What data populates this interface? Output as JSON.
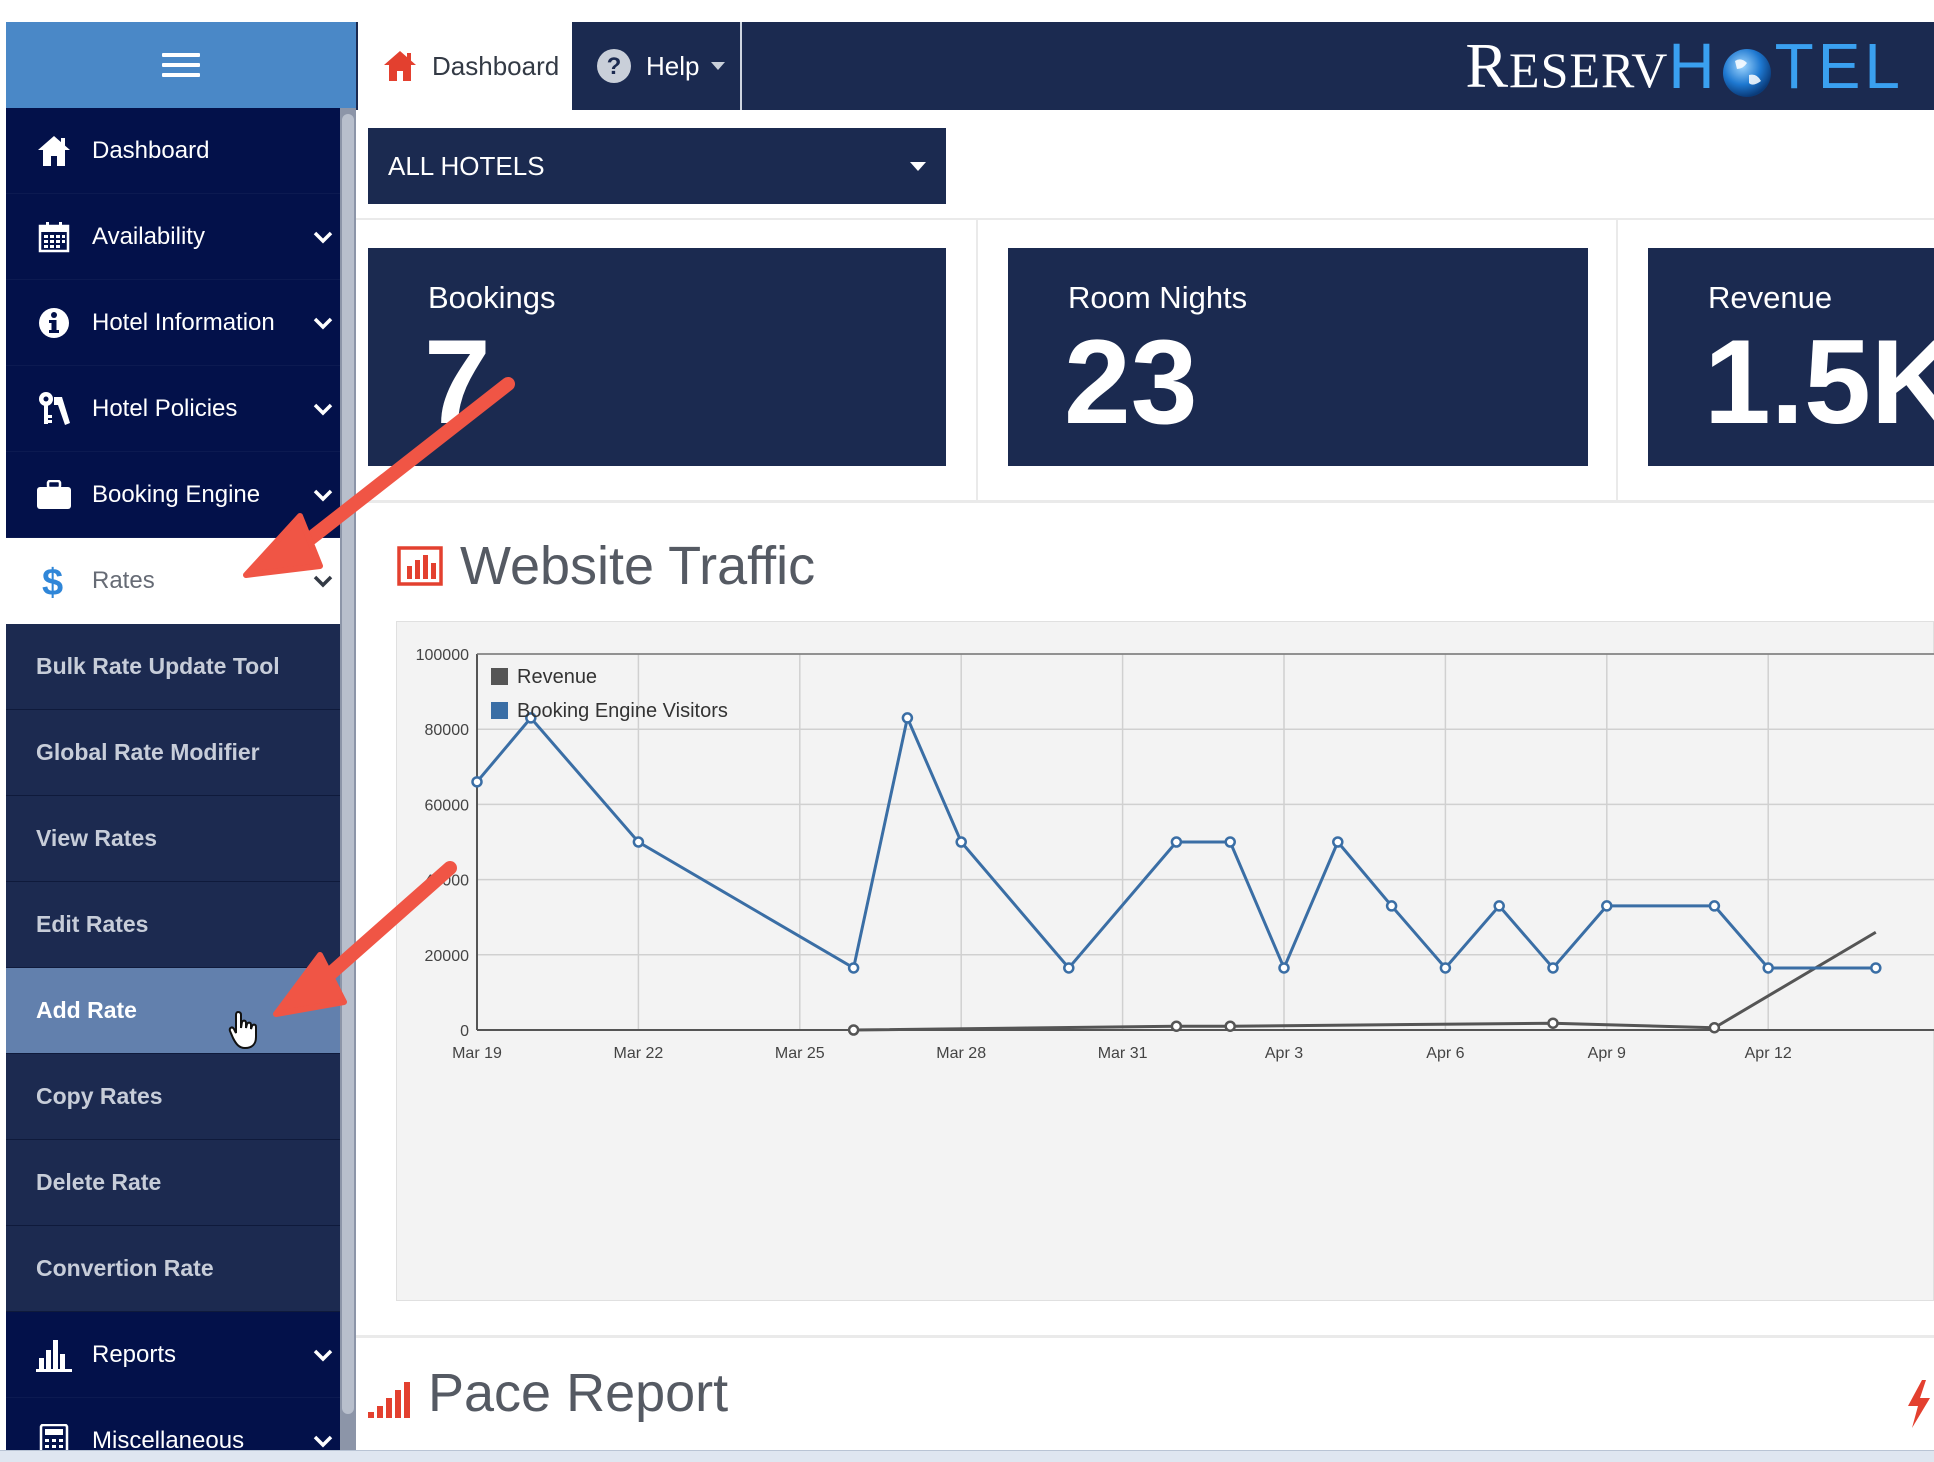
{
  "header": {
    "tabs": [
      {
        "label": "Dashboard",
        "icon": "home-icon"
      },
      {
        "label": "Help",
        "icon": "question-circle-icon"
      }
    ],
    "logo": {
      "part1": "R",
      "part2": "ESERV",
      "part3": "H",
      "part4": "TEL"
    }
  },
  "sidebar": {
    "items": [
      {
        "label": "Dashboard",
        "icon": "home-icon"
      },
      {
        "label": "Availability",
        "icon": "calendar-icon"
      },
      {
        "label": "Hotel Information",
        "icon": "info-circle-icon"
      },
      {
        "label": "Hotel Policies",
        "icon": "keys-icon"
      },
      {
        "label": "Booking Engine",
        "icon": "briefcase-icon"
      },
      {
        "label": "Rates",
        "icon": "dollar-icon"
      },
      {
        "label": "Reports",
        "icon": "bar-chart-icon"
      },
      {
        "label": "Miscellaneous",
        "icon": "calculator-icon"
      }
    ],
    "rates_submenu": [
      "Bulk Rate Update Tool",
      "Global Rate Modifier",
      "View Rates",
      "Edit Rates",
      "Add Rate",
      "Copy Rates",
      "Delete Rate",
      "Convertion Rate"
    ]
  },
  "hotel_select": {
    "value": "ALL HOTELS"
  },
  "stats": [
    {
      "label": "Bookings",
      "value": "7"
    },
    {
      "label": "Room Nights",
      "value": "23"
    },
    {
      "label": "Revenue",
      "value": "1.5K"
    }
  ],
  "traffic": {
    "title": "Website Traffic"
  },
  "pace": {
    "title": "Pace Report"
  },
  "colors": {
    "navy": "#1b2a50",
    "sidebar": "#03114a",
    "accent_blue": "#4a88c7",
    "series_blue": "#3a6ea5",
    "series_dark": "#555555",
    "arrow_red": "#f05545"
  },
  "chart_data": {
    "type": "line",
    "x": [
      "Mar 19",
      "Mar 20",
      "Mar 22",
      "Mar 26",
      "Mar 27",
      "Mar 28",
      "Mar 30",
      "Apr 1",
      "Apr 2",
      "Apr 3",
      "Apr 4",
      "Apr 5",
      "Apr 6",
      "Apr 7",
      "Apr 8",
      "Apr 9",
      "Apr 11",
      "Apr 12",
      "Apr 14"
    ],
    "xticks": [
      "Mar 19",
      "Mar 22",
      "Mar 25",
      "Mar 28",
      "Mar 31",
      "Apr 3",
      "Apr 6",
      "Apr 9",
      "Apr 12"
    ],
    "yticks": [
      "0",
      "20000",
      "40000",
      "60000",
      "80000",
      "100000"
    ],
    "ylim": [
      0,
      100000
    ],
    "legend_position": "top-left",
    "grid": true,
    "series": [
      {
        "name": "Revenue",
        "color": "#555555",
        "points": [
          [
            "Mar 26",
            0
          ],
          [
            "Apr 1",
            1000
          ],
          [
            "Apr 2",
            1000
          ],
          [
            "Apr 8",
            1800
          ],
          [
            "Apr 11",
            600
          ],
          [
            "Apr 14",
            26000
          ]
        ]
      },
      {
        "name": "Booking Engine Visitors",
        "color": "#3a6ea5",
        "points": [
          [
            "Mar 19",
            66000
          ],
          [
            "Mar 20",
            83000
          ],
          [
            "Mar 22",
            50000
          ],
          [
            "Mar 26",
            16500
          ],
          [
            "Mar 27",
            83000
          ],
          [
            "Mar 28",
            50000
          ],
          [
            "Mar 30",
            16500
          ],
          [
            "Apr 1",
            50000
          ],
          [
            "Apr 2",
            50000
          ],
          [
            "Apr 3",
            16500
          ],
          [
            "Apr 4",
            50000
          ],
          [
            "Apr 5",
            33000
          ],
          [
            "Apr 6",
            16500
          ],
          [
            "Apr 7",
            33000
          ],
          [
            "Apr 8",
            16500
          ],
          [
            "Apr 9",
            33000
          ],
          [
            "Apr 11",
            33000
          ],
          [
            "Apr 12",
            16500
          ],
          [
            "Apr 14",
            16500
          ]
        ]
      }
    ]
  }
}
